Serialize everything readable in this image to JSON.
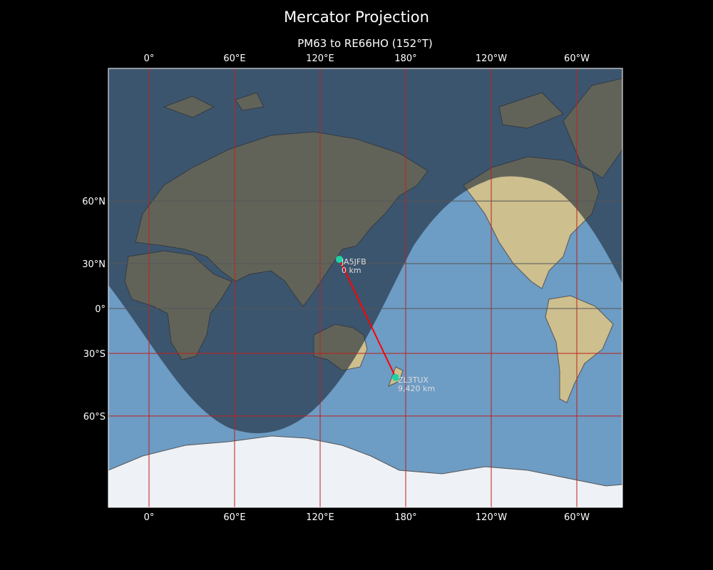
{
  "title": "Mercator Projection",
  "subtitle": "PM63 to RE66HO (152°T)",
  "colors": {
    "background": "#000000",
    "ocean": "#6d9cc4",
    "land": "#cdbf8e",
    "ice": "#eef1f5",
    "night_overlay": "#1e2a38",
    "gridline": "#c0201c",
    "path": "#ff0000",
    "station": "#1fd1a5"
  },
  "map": {
    "projection": "Mercator",
    "x_ticks": [
      {
        "lon": 0,
        "label": "0°"
      },
      {
        "lon": 60,
        "label": "60°E"
      },
      {
        "lon": 120,
        "label": "120°E"
      },
      {
        "lon": 180,
        "label": "180°"
      },
      {
        "lon": 240,
        "label": "120°W"
      },
      {
        "lon": 300,
        "label": "60°W"
      }
    ],
    "y_ticks": [
      {
        "lat": 60,
        "label": "60°N"
      },
      {
        "lat": 30,
        "label": "30°N"
      },
      {
        "lat": 0,
        "label": "0°"
      },
      {
        "lat": -30,
        "label": "30°S"
      },
      {
        "lat": -60,
        "label": "60°S"
      }
    ],
    "stations": [
      {
        "call": "JA5JFB",
        "distance": "0 km",
        "lat": 32.6,
        "lon": 133.5
      },
      {
        "call": "ZL3TUX",
        "distance": "9,420 km",
        "lat": -43.5,
        "lon": 173
      }
    ],
    "night_shading": true
  }
}
